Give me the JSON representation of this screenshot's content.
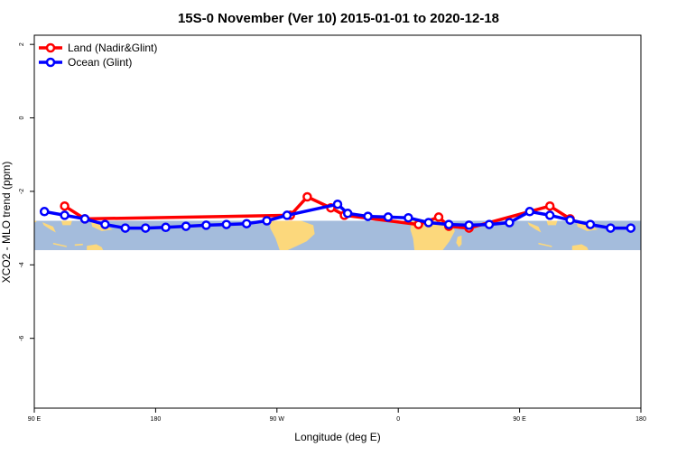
{
  "chart_data": {
    "type": "line",
    "title": "15S-0 November (Ver 10)   2015-01-01 to 2020-12-18",
    "xlabel": "Longitude (deg E)",
    "ylabel": "XCO2 - MLO trend (ppm)",
    "xlim": [
      90,
      540
    ],
    "ylim": [
      -7.9,
      2.25
    ],
    "x_ticks": [
      {
        "value": 90,
        "label": "90 E"
      },
      {
        "value": 180,
        "label": "180"
      },
      {
        "value": 270,
        "label": "90 W"
      },
      {
        "value": 360,
        "label": "0"
      },
      {
        "value": 450,
        "label": "90 E"
      },
      {
        "value": 540,
        "label": "180"
      }
    ],
    "y_ticks": [
      {
        "value": 2,
        "label": "2"
      },
      {
        "value": 0,
        "label": "0"
      },
      {
        "value": -2,
        "label": "-2"
      },
      {
        "value": -4,
        "label": "-4"
      },
      {
        "value": -6,
        "label": "-6"
      }
    ],
    "map_band": {
      "lat_range": [
        -15,
        0
      ],
      "y_range": [
        -3.6,
        -2.8
      ],
      "ocean_color": "#a4bcdc",
      "land_color": "#fcd87c"
    },
    "legend": {
      "position": "top-left"
    },
    "series": [
      {
        "name": "Land (Nadir&Glint)",
        "color": "#ff0000",
        "x": [
          112.5,
          127.5,
          280,
          292.5,
          310,
          320,
          375,
          390,
          397.5,
          412.5,
          472.5,
          487.5
        ],
        "y": [
          -2.4,
          -2.75,
          -2.65,
          -2.15,
          -2.45,
          -2.65,
          -2.9,
          -2.7,
          -2.95,
          -3.0,
          -2.4,
          -2.75
        ]
      },
      {
        "name": "Ocean (Glint)",
        "color": "#0000ff",
        "x": [
          97.5,
          112.5,
          127.5,
          142.5,
          157.5,
          172.5,
          187.5,
          202.5,
          217.5,
          232.5,
          247.5,
          262.5,
          277.5,
          315,
          322.5,
          337.5,
          352.5,
          367.5,
          382.5,
          397.5,
          412.5,
          427.5,
          442.5,
          457.5,
          472.5,
          487.5,
          502.5,
          517.5,
          532.5
        ],
        "y": [
          -2.55,
          -2.65,
          -2.75,
          -2.9,
          -3.0,
          -3.0,
          -2.98,
          -2.95,
          -2.92,
          -2.9,
          -2.88,
          -2.8,
          -2.65,
          -2.35,
          -2.6,
          -2.68,
          -2.7,
          -2.72,
          -2.85,
          -2.9,
          -2.92,
          -2.9,
          -2.85,
          -2.55,
          -2.65,
          -2.78,
          -2.9,
          -3.0,
          -3.0
        ]
      }
    ]
  }
}
